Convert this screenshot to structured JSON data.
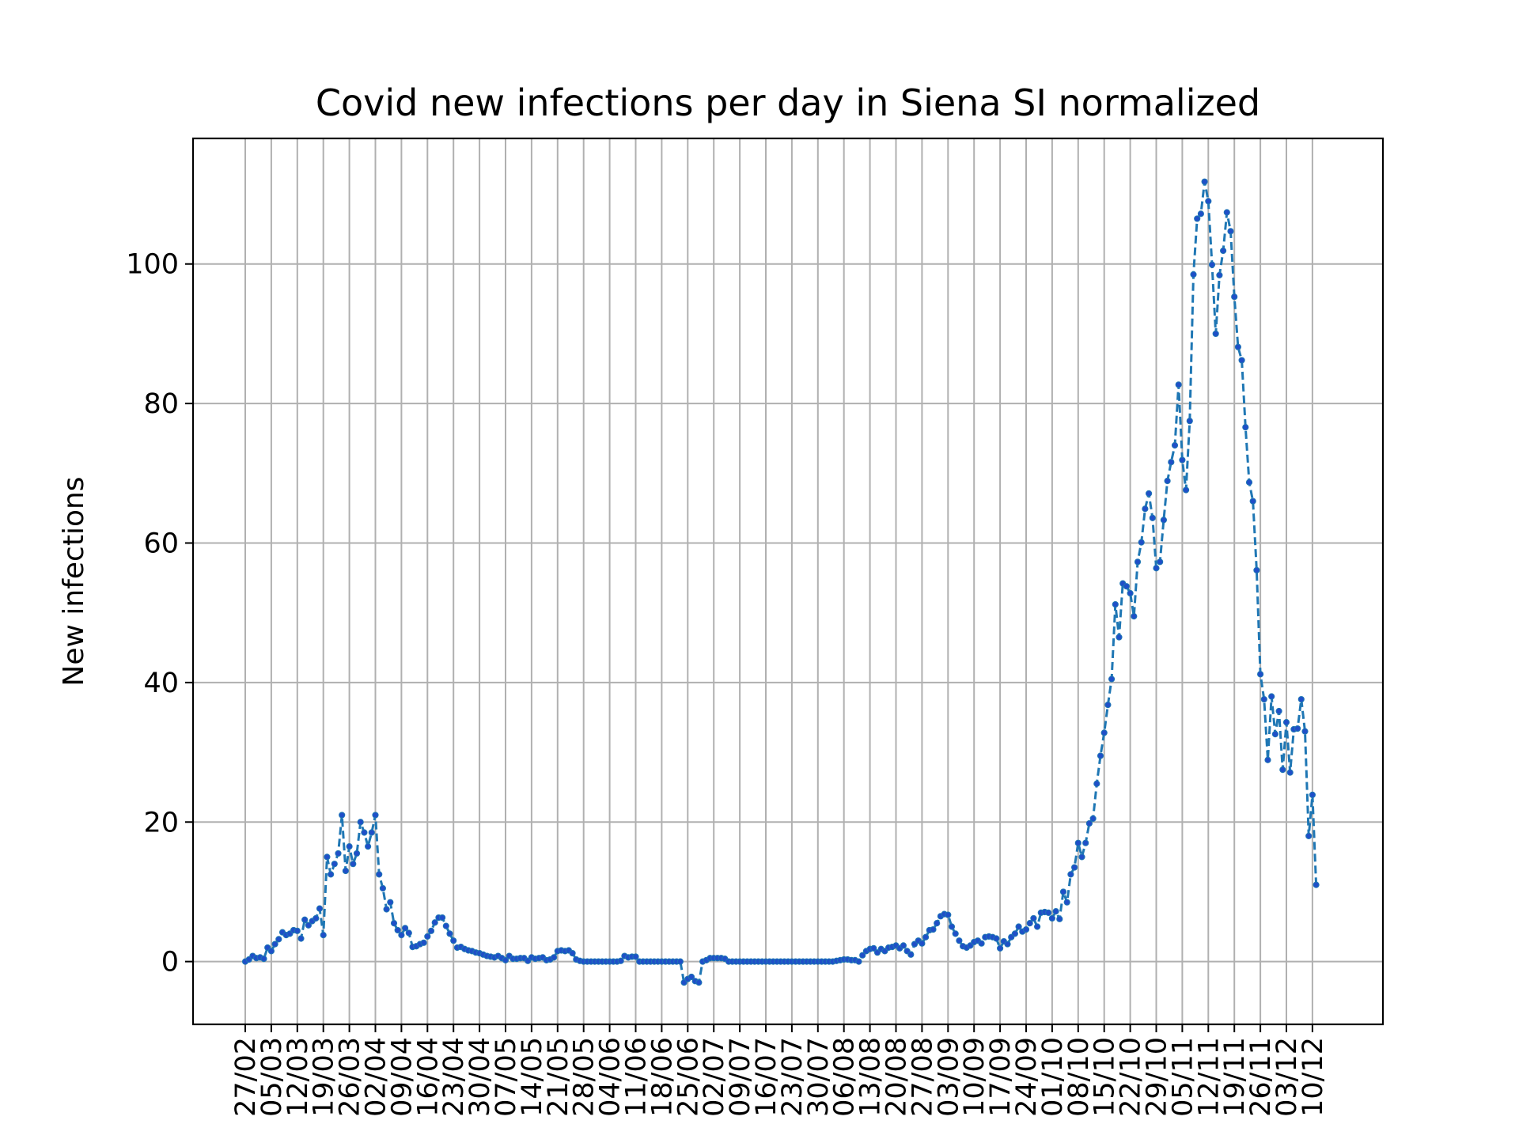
{
  "chart_data": {
    "type": "line",
    "title": "Covid new infections per day in Siena SI normalized",
    "xlabel": "",
    "ylabel": "New infections",
    "ylim": [
      -9,
      118
    ],
    "yticks": [
      0,
      20,
      40,
      60,
      80,
      100
    ],
    "grid": true,
    "line_style": "dashed",
    "marker": "dot",
    "colors": {
      "line": "#1f77b4",
      "marker": "#1f4fc8",
      "grid": "#b0b0b0"
    },
    "x_tick_labels": [
      "27/02",
      "05/03",
      "12/03",
      "19/03",
      "26/03",
      "02/04",
      "09/04",
      "16/04",
      "23/04",
      "30/04",
      "07/05",
      "14/05",
      "21/05",
      "28/05",
      "04/06",
      "11/06",
      "18/06",
      "25/06",
      "02/07",
      "09/07",
      "16/07",
      "23/07",
      "30/07",
      "06/08",
      "13/08",
      "20/08",
      "27/08",
      "03/09",
      "10/09",
      "17/09",
      "24/09",
      "01/10",
      "08/10",
      "15/10",
      "22/10",
      "29/10",
      "05/11",
      "12/11",
      "19/11",
      "26/11",
      "03/12",
      "10/12"
    ],
    "start_date": "2020-02-27",
    "values": [
      0,
      0.3,
      0.8,
      0.5,
      0.6,
      0.4,
      2,
      1.5,
      2.5,
      3.2,
      4.2,
      3.8,
      4.0,
      4.5,
      4.4,
      3.3,
      6,
      5.2,
      5.8,
      6.2,
      7.6,
      3.8,
      15,
      12.5,
      14,
      15.5,
      21,
      13,
      16.5,
      14,
      15.5,
      20,
      18.5,
      16.5,
      18.5,
      21,
      12.5,
      10.5,
      7.5,
      8.5,
      5.5,
      4.5,
      3.8,
      4.8,
      4.1,
      2.1,
      2.2,
      2.5,
      2.7,
      3.6,
      4.4,
      5.6,
      6.3,
      6.3,
      5.1,
      4.0,
      3.0,
      2.0,
      2.1,
      1.8,
      1.6,
      1.5,
      1.3,
      1.2,
      1.0,
      0.8,
      0.7,
      0.6,
      0.8,
      0.5,
      0.2,
      0.8,
      0.4,
      0.4,
      0.5,
      0.5,
      0.1,
      0.6,
      0.4,
      0.5,
      0.6,
      0.2,
      0.3,
      0.6,
      1.5,
      1.6,
      1.5,
      1.6,
      1.2,
      0.3,
      0.1,
      0,
      0,
      0,
      0,
      0,
      0,
      0,
      0,
      0,
      0,
      0.1,
      0.8,
      0.6,
      0.7,
      0.7,
      0,
      0,
      0,
      0,
      0,
      0,
      0,
      0,
      0,
      0,
      0,
      0,
      -3,
      -2.5,
      -2.2,
      -2.8,
      -3,
      0,
      0.2,
      0.5,
      0.5,
      0.5,
      0.5,
      0.4,
      0,
      0,
      0,
      0,
      0,
      0,
      0,
      0,
      0,
      0,
      0,
      0,
      0,
      0,
      0,
      0,
      0,
      0,
      0,
      0,
      0,
      0,
      0,
      0,
      0,
      0,
      0,
      0,
      0,
      0.1,
      0.2,
      0.3,
      0.3,
      0.2,
      0.2,
      0,
      0.9,
      1.5,
      1.8,
      1.9,
      1.3,
      1.8,
      1.5,
      2.0,
      2.1,
      2.3,
      1.9,
      2.3,
      1.5,
      1.0,
      2.5,
      3.0,
      2.6,
      3.5,
      4.5,
      4.6,
      5.5,
      6.5,
      6.8,
      6.7,
      5.0,
      4.0,
      3.0,
      2.2,
      2.0,
      2.3,
      2.8,
      3.0,
      2.6,
      3.5,
      3.6,
      3.5,
      3.3,
      1.9,
      2.9,
      2.5,
      3.5,
      4.0,
      5.0,
      4.3,
      4.6,
      5.5,
      6.2,
      5.0,
      7.0,
      7.1,
      7.0,
      6.2,
      7.2,
      6.1,
      10,
      8.5,
      12.5,
      13.5,
      17,
      15,
      17,
      19.8,
      20.5,
      25.5,
      29.5,
      32.8,
      36.8,
      40.5,
      51.2,
      46.5,
      54.2,
      53.8,
      52.8,
      49.5,
      57.3,
      60.1,
      64.9,
      67.1,
      63.6,
      56.4,
      57.3,
      63.3,
      68.9,
      71.6,
      74,
      82.7,
      71.9,
      67.6,
      77.5,
      98.5,
      106.5,
      107.2,
      111.8,
      109,
      99.9,
      90,
      98.4,
      101.9,
      107.4,
      104.7,
      95.3,
      88.1,
      86.2,
      76.6,
      68.7,
      66,
      56.1,
      41.2,
      37.6,
      28.9,
      38,
      32.6,
      35.9,
      27.5,
      34.3,
      27.1,
      33.3,
      33.4,
      37.6,
      33,
      18,
      23.9,
      11
    ]
  }
}
